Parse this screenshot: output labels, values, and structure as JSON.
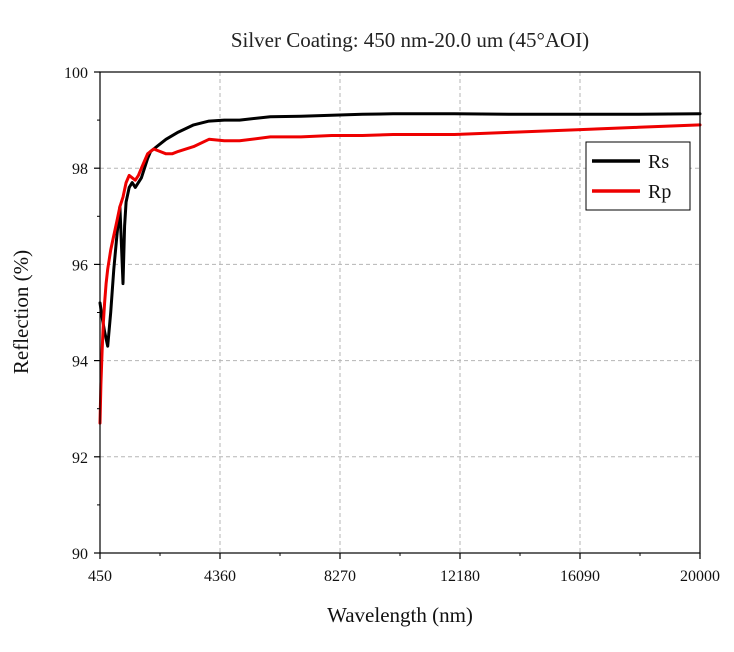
{
  "chart_data": {
    "type": "line",
    "title": "Silver Coating: 450 nm-20.0 um (45°AOI)",
    "xlabel": "Wavelength (nm)",
    "ylabel": "Reflection (%)",
    "xlim": [
      450,
      20000
    ],
    "ylim": [
      90,
      100
    ],
    "x_ticks": [
      450,
      4360,
      8270,
      12180,
      16090,
      20000
    ],
    "x_tick_labels": [
      "450",
      "4360",
      "8270",
      "12180",
      "16090",
      "20000"
    ],
    "y_ticks": [
      90,
      92,
      94,
      96,
      98,
      100
    ],
    "y_tick_labels": [
      "90",
      "92",
      "94",
      "96",
      "98",
      "100"
    ],
    "grid": true,
    "legend_position": "right",
    "series": [
      {
        "name": "Rs",
        "color": "#000000",
        "x": [
          450,
          520,
          600,
          700,
          800,
          900,
          1000,
          1100,
          1200,
          1250,
          1300,
          1400,
          1500,
          1600,
          1700,
          1800,
          1900,
          2000,
          2100,
          2200,
          2400,
          2600,
          3000,
          3500,
          4000,
          4500,
          5000,
          6000,
          7000,
          8000,
          9000,
          10000,
          12000,
          14000,
          16000,
          18000,
          20000
        ],
        "values": [
          95.2,
          94.9,
          94.6,
          94.3,
          95.0,
          95.9,
          96.6,
          97.2,
          95.6,
          96.8,
          97.3,
          97.6,
          97.7,
          97.6,
          97.7,
          97.8,
          98.0,
          98.2,
          98.35,
          98.4,
          98.5,
          98.6,
          98.75,
          98.9,
          98.98,
          99.0,
          99.0,
          99.07,
          99.08,
          99.1,
          99.12,
          99.13,
          99.13,
          99.12,
          99.12,
          99.12,
          99.13
        ]
      },
      {
        "name": "Rp",
        "color": "#ee0000",
        "x": [
          450,
          480,
          520,
          560,
          600,
          650,
          700,
          800,
          900,
          1000,
          1100,
          1200,
          1300,
          1400,
          1500,
          1600,
          1700,
          1800,
          1900,
          2000,
          2100,
          2200,
          2400,
          2600,
          2800,
          3000,
          3500,
          4000,
          4500,
          5000,
          6000,
          7000,
          8000,
          9000,
          10000,
          12000,
          14000,
          16000,
          18000,
          20000
        ],
        "values": [
          92.7,
          93.5,
          94.2,
          94.8,
          95.2,
          95.6,
          95.9,
          96.3,
          96.6,
          96.9,
          97.2,
          97.4,
          97.7,
          97.85,
          97.8,
          97.75,
          97.85,
          98.0,
          98.15,
          98.3,
          98.35,
          98.4,
          98.35,
          98.3,
          98.3,
          98.35,
          98.45,
          98.6,
          98.57,
          98.57,
          98.65,
          98.65,
          98.68,
          98.68,
          98.7,
          98.7,
          98.75,
          98.8,
          98.85,
          98.9
        ]
      }
    ]
  }
}
